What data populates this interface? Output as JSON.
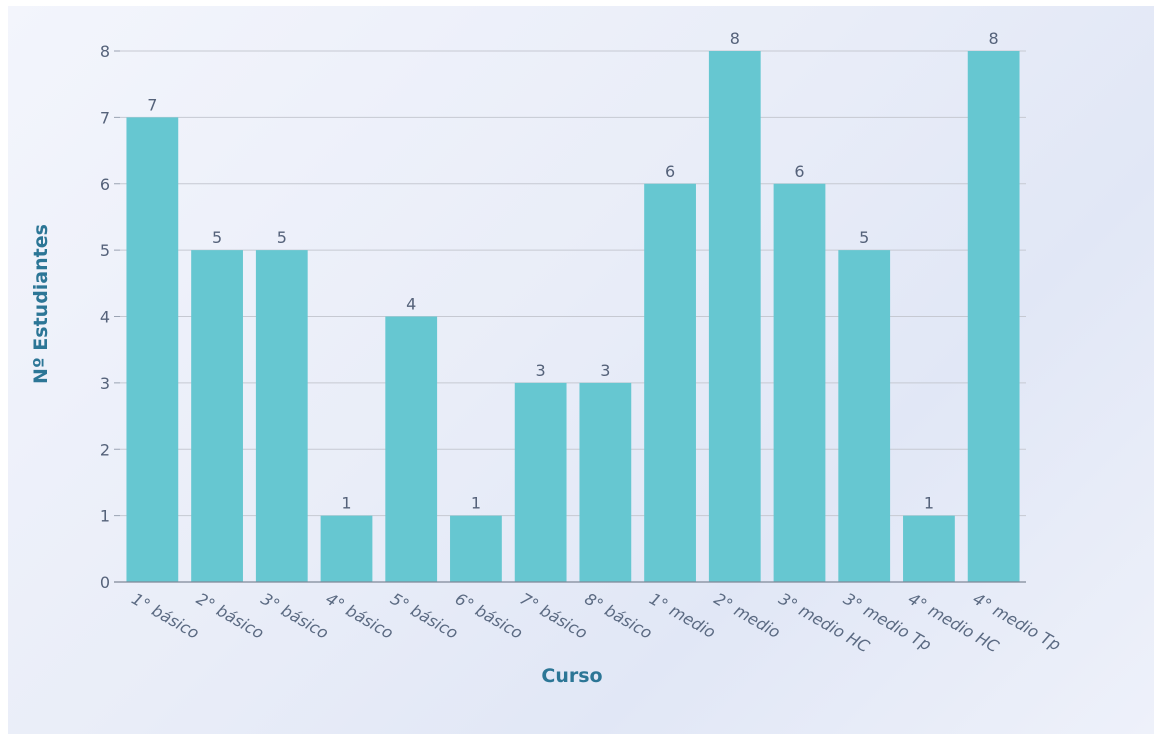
{
  "chart_data": {
    "type": "bar",
    "xlabel": "Curso",
    "ylabel": "Nº Estudiantes",
    "categories": [
      "1° básico",
      "2° básico",
      "3° básico",
      "4° básico",
      "5° básico",
      "6° básico",
      "7° básico",
      "8° básico",
      "1° medio",
      "2° medio",
      "3° medio HC",
      "3° medio Tp",
      "4° medio HC",
      "4° medio Tp"
    ],
    "values": [
      7,
      5,
      5,
      1,
      4,
      1,
      3,
      3,
      6,
      8,
      6,
      5,
      1,
      8
    ],
    "ylim": [
      0,
      8
    ],
    "yticks": [
      0,
      1,
      2,
      3,
      4,
      5,
      6,
      7,
      8
    ],
    "grid": true,
    "data_labels": true,
    "colors": {
      "bar": "#66c7d1",
      "grid": "#c6c9d2",
      "axis_title": "#2c7696",
      "tick": "#55627a"
    }
  }
}
